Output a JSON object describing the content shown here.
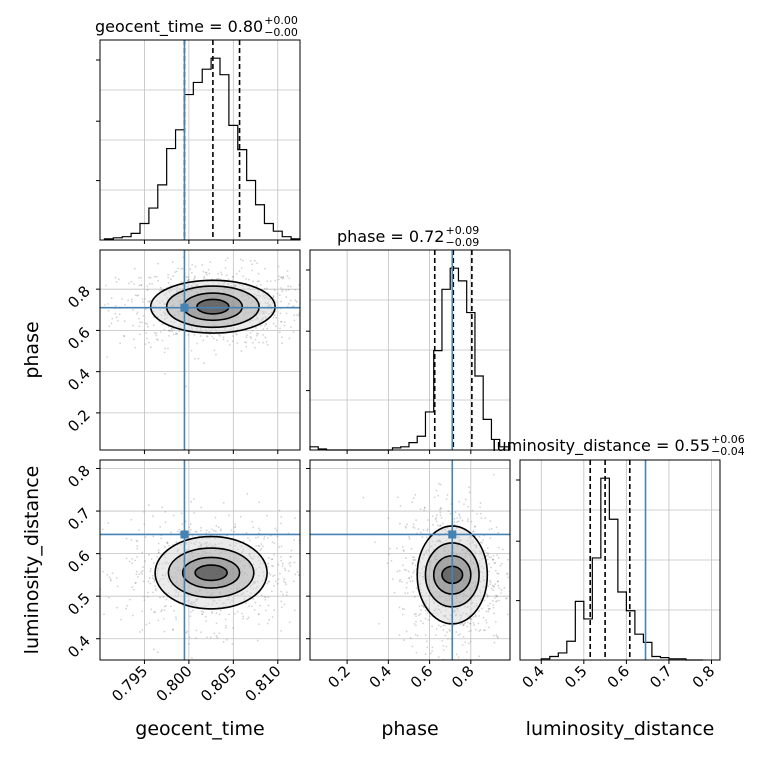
{
  "chart_data": {
    "type": "corner",
    "parameters": [
      "geocent_time",
      "phase",
      "luminosity_distance"
    ],
    "truths": {
      "geocent_time": 0.7995,
      "phase": 0.71,
      "luminosity_distance": 0.645
    },
    "colors": {
      "truth": "#4682b4",
      "hist": "#000000",
      "grid": "#c0c0c0",
      "points": "#808080"
    },
    "grid": true,
    "ranges": {
      "geocent_time": [
        0.79,
        0.8125
      ],
      "phase": [
        0.02,
        0.99
      ],
      "luminosity_distance": [
        0.35,
        0.82
      ]
    },
    "ticks": {
      "geocent_time": [
        0.795,
        0.8,
        0.805,
        0.81
      ],
      "phase": [
        0.2,
        0.4,
        0.6,
        0.8
      ],
      "phase_y": [
        0.2,
        0.4,
        0.6,
        0.8
      ],
      "luminosity_distance": [
        0.4,
        0.5,
        0.6,
        0.7,
        0.8
      ],
      "luminosity_distance_y": [
        0.4,
        0.5,
        0.6,
        0.7,
        0.8
      ]
    },
    "tick_labels": {
      "geocent_time": [
        "0.795",
        "0.800",
        "0.805",
        "0.810"
      ],
      "phase": [
        "0.2",
        "0.4",
        "0.6",
        "0.8"
      ],
      "phase_y": [
        "0.2",
        "0.4",
        "0.6",
        "0.8"
      ],
      "luminosity_distance": [
        "0.4",
        "0.5",
        "0.6",
        "0.7",
        "0.8"
      ],
      "luminosity_distance_y": [
        "0.4",
        "0.5",
        "0.6",
        "0.7",
        "0.8"
      ]
    },
    "xlabels": [
      "geocent_time",
      "phase",
      "luminosity_distance"
    ],
    "ylabels": [
      "phase",
      "luminosity_distance"
    ],
    "titles": [
      {
        "param": "geocent_time",
        "text": "geocent_time = 0.80",
        "sup": "+0.00",
        "sub": "−0.00"
      },
      {
        "param": "phase",
        "text": "phase = 0.72",
        "sup": "+0.09",
        "sub": "−0.09"
      },
      {
        "param": "luminosity_distance",
        "text": "luminosity_distance = 0.55",
        "sup": "+0.06",
        "sub": "−0.04"
      }
    ],
    "quantiles": {
      "geocent_time": [
        0.7995,
        0.8027,
        0.8057
      ],
      "phase": [
        0.625,
        0.715,
        0.805
      ],
      "luminosity_distance": [
        0.515,
        0.55,
        0.608
      ]
    },
    "histograms": {
      "geocent_time": {
        "edges": [
          0.7905,
          0.7915,
          0.7925,
          0.7935,
          0.7945,
          0.7955,
          0.7965,
          0.7975,
          0.7985,
          0.7995,
          0.8005,
          0.8015,
          0.8025,
          0.8035,
          0.8045,
          0.8055,
          0.8065,
          0.8075,
          0.8085,
          0.8095,
          0.8105,
          0.8115,
          0.8125
        ],
        "counts": [
          1,
          2,
          3,
          6,
          15,
          29,
          50,
          83,
          100,
          132,
          143,
          155,
          165,
          150,
          104,
          82,
          54,
          32,
          15,
          8,
          3,
          1
        ]
      },
      "phase": {
        "edges": [
          0.02,
          0.06,
          0.1,
          0.14,
          0.18,
          0.22,
          0.26,
          0.3,
          0.34,
          0.38,
          0.42,
          0.46,
          0.5,
          0.54,
          0.58,
          0.62,
          0.66,
          0.7,
          0.74,
          0.78,
          0.82,
          0.86,
          0.9,
          0.94,
          0.99
        ],
        "counts": [
          3,
          1,
          0,
          0,
          0,
          0,
          0,
          0,
          0,
          0,
          2,
          3,
          7,
          13,
          36,
          94,
          152,
          172,
          160,
          130,
          70,
          29,
          10,
          3
        ]
      },
      "luminosity_distance": {
        "edges": [
          0.4,
          0.42,
          0.44,
          0.46,
          0.48,
          0.5,
          0.52,
          0.54,
          0.56,
          0.58,
          0.6,
          0.62,
          0.64,
          0.66,
          0.68,
          0.7,
          0.72,
          0.74,
          0.76,
          0.78
        ],
        "counts": [
          1,
          3,
          6,
          16,
          50,
          35,
          87,
          155,
          120,
          58,
          42,
          22,
          15,
          3,
          2,
          1,
          1,
          0,
          0
        ]
      }
    },
    "contours": {
      "phase|geocent_time": {
        "center": [
          0.8027,
          0.715
        ],
        "radii": [
          [
            0.0018,
            0.035
          ],
          [
            0.0033,
            0.066
          ],
          [
            0.0052,
            0.1
          ],
          [
            0.007,
            0.128
          ]
        ]
      },
      "luminosity_distance|geocent_time": {
        "center": [
          0.8025,
          0.555
        ],
        "radii": [
          [
            0.0018,
            0.018
          ],
          [
            0.0032,
            0.036
          ],
          [
            0.0048,
            0.058
          ],
          [
            0.0063,
            0.085
          ]
        ]
      },
      "luminosity_distance|phase": {
        "center": [
          0.71,
          0.55
        ],
        "radii": [
          [
            0.05,
            0.02
          ],
          [
            0.09,
            0.045
          ],
          [
            0.13,
            0.075
          ],
          [
            0.17,
            0.115
          ]
        ]
      }
    }
  }
}
